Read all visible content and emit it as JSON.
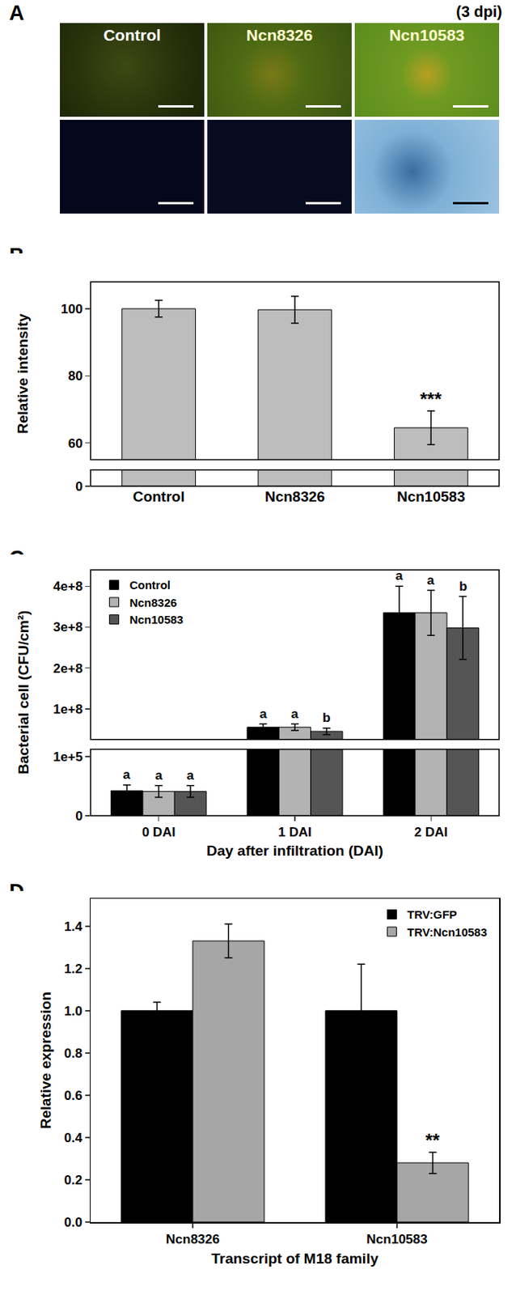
{
  "image_panel": {
    "label": "A",
    "note": "(3 dpi)",
    "columns": [
      "Control",
      "Ncn8326",
      "Ncn10583"
    ]
  },
  "chart_data": [
    {
      "label": "B",
      "type": "bar",
      "categories": [
        "Control",
        "Ncn8326",
        "Ncn10583"
      ],
      "values": [
        100,
        99.7,
        64.5
      ],
      "errors": [
        2.5,
        4,
        5
      ],
      "color": "#bdbdbd",
      "ylabel": "Relative intensity",
      "ylim": [
        [
          0,
          5
        ],
        [
          55,
          108
        ]
      ],
      "yticks": [
        [
          0
        ],
        [
          60,
          80,
          100
        ]
      ],
      "annotations": [
        {
          "category": "Ncn10583",
          "text": "***"
        }
      ]
    },
    {
      "label": "C",
      "type": "bar",
      "xlabel": "Day after infiltration (DAI)",
      "ylabel": "Bacterial cell (CFU/cm²)",
      "categories": [
        "0 DAI",
        "1 DAI",
        "2 DAI"
      ],
      "series": [
        {
          "name": "Control",
          "color": "#000000",
          "values": [
            42000,
            55000000,
            335000000
          ],
          "errors": [
            10000,
            8000000,
            65000000
          ],
          "letters": [
            "a",
            "a",
            "a"
          ]
        },
        {
          "name": "Ncn8326",
          "color": "#b3b3b3",
          "values": [
            41000,
            55000000,
            335000000
          ],
          "errors": [
            10000,
            8000000,
            55000000
          ],
          "letters": [
            "a",
            "a",
            "a"
          ]
        },
        {
          "name": "Ncn10583",
          "color": "#555555",
          "values": [
            41000,
            45000000,
            298000000
          ],
          "errors": [
            10000,
            8000000,
            77000000
          ],
          "letters": [
            "a",
            "b",
            "b"
          ]
        }
      ],
      "ylim": [
        [
          0,
          112000
        ],
        [
          25000000,
          440000000
        ]
      ],
      "yticks": [
        [
          0,
          {
            "value": 100000,
            "label": "1e+5"
          }
        ],
        [
          {
            "value": 100000000,
            "label": "1e+8"
          },
          {
            "value": 200000000,
            "label": "2e+8"
          },
          {
            "value": 300000000,
            "label": "3e+8"
          },
          {
            "value": 400000000,
            "label": "4e+8"
          }
        ]
      ],
      "legend": "upper left"
    },
    {
      "label": "D",
      "type": "bar",
      "xlabel": "Transcript of M18 family",
      "ylabel": "Relative expression",
      "categories": [
        "Ncn8326",
        "Ncn10583"
      ],
      "series": [
        {
          "name": "TRV:GFP",
          "color": "#000000",
          "values": [
            1.0,
            1.0
          ],
          "errors": [
            0.04,
            0.22
          ]
        },
        {
          "name": "TRV:Ncn10583",
          "color": "#a6a6a6",
          "values": [
            1.33,
            0.28
          ],
          "errors": [
            0.08,
            0.05
          ]
        }
      ],
      "ylim": [
        0,
        1.53
      ],
      "yticks": [
        {
          "value": 0,
          "label": "0.0"
        },
        {
          "value": 0.2,
          "label": "0.2"
        },
        {
          "value": 0.4,
          "label": "0.4"
        },
        {
          "value": 0.6,
          "label": "0.6"
        },
        {
          "value": 0.8,
          "label": "0.8"
        },
        {
          "value": 1.0,
          "label": "1.0"
        },
        {
          "value": 1.2,
          "label": "1.2"
        },
        {
          "value": 1.4,
          "label": "1.4"
        }
      ],
      "legend": "upper right",
      "annotations": [
        {
          "category": "Ncn10583",
          "series": "TRV:Ncn10583",
          "text": "**"
        }
      ]
    }
  ]
}
